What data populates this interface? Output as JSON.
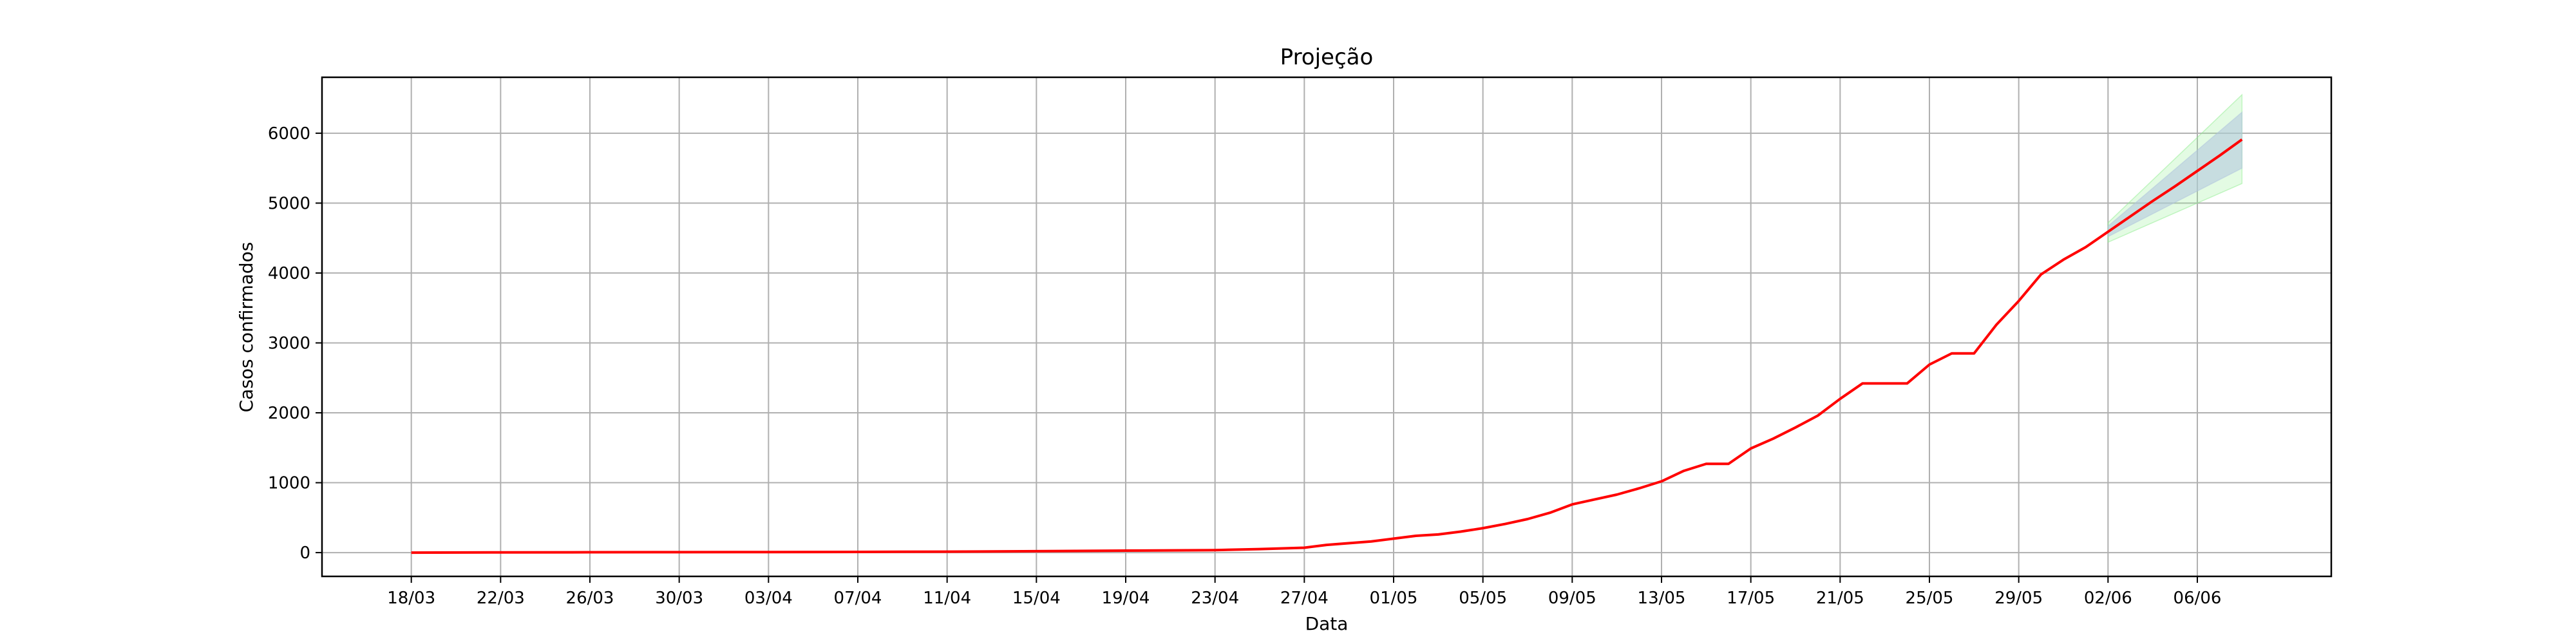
{
  "chart_data": {
    "type": "line",
    "title": "Projeção",
    "xlabel": "Data",
    "ylabel": "Casos confirmados",
    "x_ticks": [
      "18/03",
      "22/03",
      "26/03",
      "30/03",
      "03/04",
      "07/04",
      "11/04",
      "15/04",
      "19/04",
      "23/04",
      "27/04",
      "01/05",
      "05/05",
      "09/05",
      "13/05",
      "17/05",
      "21/05",
      "25/05",
      "29/05",
      "02/06",
      "06/06"
    ],
    "y_ticks": [
      0,
      1000,
      2000,
      3000,
      4000,
      5000,
      6000
    ],
    "xlim": [
      "14/03",
      "12/06"
    ],
    "ylim": [
      -340,
      6800
    ],
    "grid": true,
    "colors": {
      "series": "#ff0000",
      "inner_band": "#b0c4de",
      "outer_band": "#90ee90",
      "grid": "#b0b0b0"
    },
    "series": [
      {
        "x": [
          "18/03",
          "22/03",
          "26/03",
          "30/03",
          "03/04",
          "07/04",
          "11/04",
          "15/04",
          "19/04",
          "23/04",
          "25/04",
          "27/04",
          "28/04",
          "30/04",
          "01/05",
          "02/05",
          "03/05",
          "04/05",
          "05/05",
          "06/05",
          "07/05",
          "08/05",
          "09/05",
          "10/05",
          "11/05",
          "12/05",
          "13/05",
          "14/05",
          "15/05",
          "16/05",
          "17/05",
          "18/05",
          "19/05",
          "20/05",
          "21/05",
          "22/05",
          "23/05",
          "24/05",
          "25/05",
          "26/05",
          "27/05",
          "28/05",
          "29/05",
          "30/05",
          "31/05",
          "01/06",
          "02/06",
          "03/06",
          "04/06",
          "05/06",
          "06/06",
          "07/06",
          "08/06"
        ],
        "values": [
          0,
          3,
          5,
          7,
          8,
          10,
          14,
          20,
          28,
          36,
          50,
          70,
          110,
          160,
          200,
          240,
          260,
          300,
          350,
          410,
          480,
          570,
          690,
          760,
          830,
          920,
          1020,
          1170,
          1270,
          1270,
          1490,
          1630,
          1790,
          1960,
          2200,
          2420,
          2420,
          2420,
          2690,
          2850,
          2850,
          3260,
          3600,
          3980,
          4190,
          4370,
          4590,
          4810,
          5030,
          5240,
          5460,
          5680,
          5910
        ]
      }
    ],
    "bands": [
      {
        "x": [
          "02/06",
          "08/06"
        ],
        "lower": [
          4440,
          5280
        ],
        "upper": [
          4720,
          6550
        ]
      },
      {
        "x": [
          "02/06",
          "08/06"
        ],
        "lower": [
          4520,
          5500
        ],
        "upper": [
          4670,
          6300
        ]
      }
    ]
  }
}
